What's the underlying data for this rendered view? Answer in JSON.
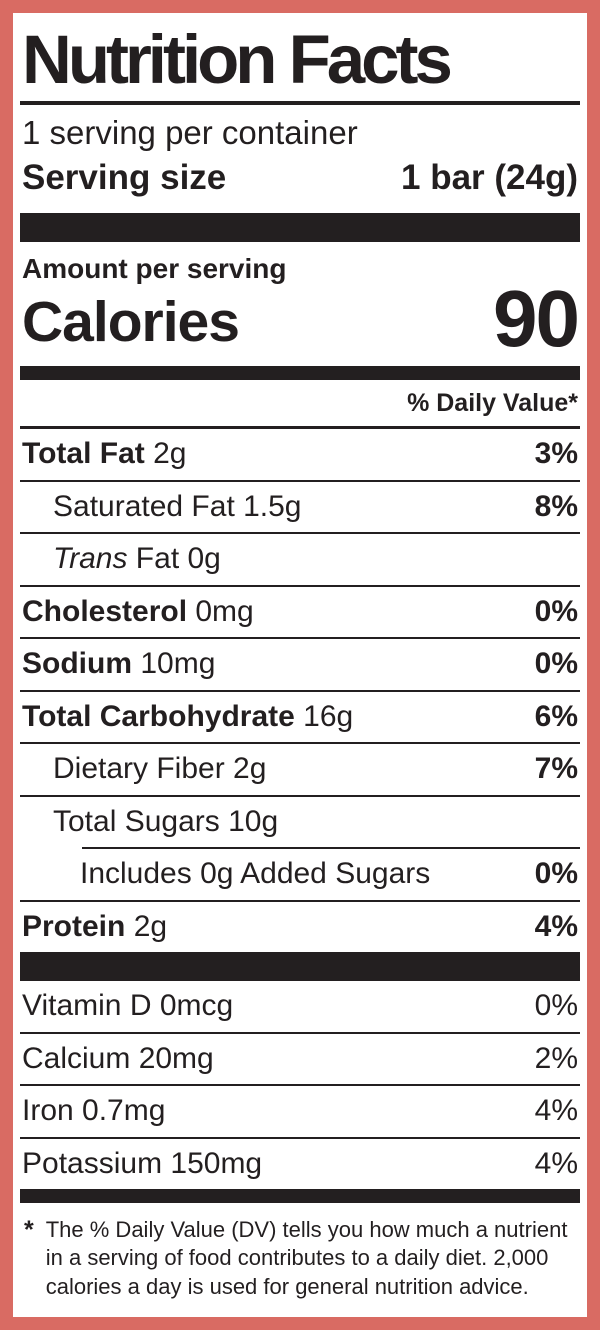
{
  "colors": {
    "border_accent": "#d96b63",
    "ink": "#231f20",
    "panel_background": "#ffffff"
  },
  "header": {
    "title": "Nutrition Facts",
    "servings_per_container": "1 serving per container",
    "serving_size_label": "Serving size",
    "serving_size_value": "1 bar (24g)"
  },
  "calories": {
    "amount_per_serving_label": "Amount per serving",
    "label": "Calories",
    "value": "90"
  },
  "daily_value_header": "% Daily Value*",
  "nutrient_rows": [
    {
      "strong": "Total Fat",
      "em": "",
      "text": " 2g",
      "dv": "3%"
    },
    {
      "strong": "",
      "em": "",
      "text": "Saturated Fat 1.5g",
      "dv": "8%"
    },
    {
      "strong": "",
      "em": "Trans",
      "text": " Fat 0g",
      "dv": ""
    },
    {
      "strong": "Cholesterol",
      "em": "",
      "text": " 0mg",
      "dv": "0%"
    },
    {
      "strong": "Sodium",
      "em": "",
      "text": " 10mg",
      "dv": "0%"
    },
    {
      "strong": "Total Carbohydrate",
      "em": "",
      "text": " 16g",
      "dv": "6%"
    },
    {
      "strong": "",
      "em": "",
      "text": "Dietary Fiber 2g",
      "dv": "7%"
    },
    {
      "strong": "",
      "em": "",
      "text": "Total Sugars 10g",
      "dv": ""
    },
    {
      "strong": "",
      "em": "",
      "text": "Includes 0g Added Sugars",
      "dv": "0%"
    },
    {
      "strong": "Protein",
      "em": "",
      "text": " 2g",
      "dv": "4%"
    }
  ],
  "vitamin_rows": [
    {
      "text": "Vitamin D 0mcg",
      "dv": "0%"
    },
    {
      "text": "Calcium 20mg",
      "dv": "2%"
    },
    {
      "text": "Iron 0.7mg",
      "dv": "4%"
    },
    {
      "text": "Potassium 150mg",
      "dv": "4%"
    }
  ],
  "footnote": {
    "marker": "*",
    "text": "The % Daily Value (DV) tells you how much a nutrient in a serving of food contributes to a daily diet. 2,000 calories a day is used for general nutrition advice."
  }
}
